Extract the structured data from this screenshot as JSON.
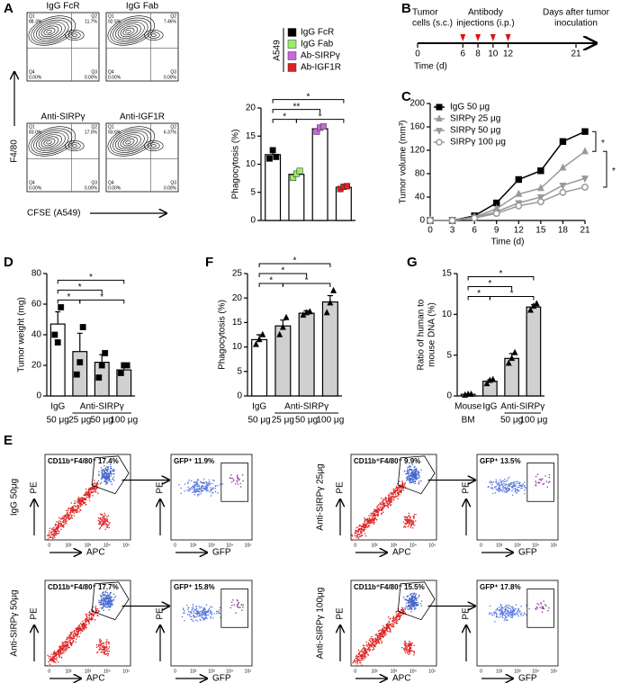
{
  "panel_labels": [
    "A",
    "B",
    "C",
    "D",
    "E",
    "F",
    "G"
  ],
  "flow_a": {
    "y_label": "F4/80",
    "x_label": "CFSE (A549)",
    "quadrant_names": [
      "Q1",
      "Q2",
      "Q3",
      "Q4"
    ],
    "plots": [
      {
        "title": "IgG FcR",
        "q1": "88.3%",
        "q2": "11.7%",
        "q3": "0.00%",
        "q4": "0.00%"
      },
      {
        "title": "IgG Fab",
        "q1": "92.5%",
        "q2": "7.46%",
        "q3": "0.00%",
        "q4": "0.00%"
      },
      {
        "title": "Anti-SIRPγ",
        "q1": "83.0%",
        "q2": "17.0%",
        "q3": "0.00%",
        "q4": "0.00%"
      },
      {
        "title": "Anti-IGF1R",
        "q1": "93.6%",
        "q2": "6.37%",
        "q3": "0.00%",
        "q4": "0.00%"
      }
    ]
  },
  "timeline": {
    "tumor_label": [
      "Tumor",
      "cells (s.c.)"
    ],
    "injection_label": [
      "Antibody",
      "injections (i.p.)"
    ],
    "days_label": [
      "Days after tumor",
      "inoculation"
    ],
    "axis_label": "Time (d)",
    "lim": [
      0,
      21
    ],
    "ticks": [
      0,
      6,
      8,
      10,
      12,
      21
    ],
    "injection_days": [
      6,
      8,
      10,
      12
    ],
    "injection_color": "#dd1111"
  },
  "chart_data": [
    {
      "type": "bar",
      "y_label": "Phagocytosis (%)",
      "categories": [
        "IgG FcR",
        "IgG Fab",
        "Ab-SIRPγ",
        "Ab-IGF1R"
      ],
      "legend": true,
      "legend_title": "A549",
      "colors": [
        "#000000",
        "#99ee66",
        "#cc66dd",
        "#dd2222"
      ],
      "bar_color": "#ffffff",
      "values": [
        11.7,
        8.2,
        16.3,
        5.9
      ],
      "errors": [
        0.6,
        0.5,
        0.3,
        0.2
      ],
      "points": [
        [
          11,
          12.5,
          11.3
        ],
        [
          7.6,
          8.3,
          8.8
        ],
        [
          15.8,
          16.5,
          16.7
        ],
        [
          5.6,
          6.0,
          6.1
        ]
      ],
      "point_shape": "square",
      "ylim": [
        0,
        20
      ],
      "yticks": [
        0,
        5,
        10,
        15,
        20
      ],
      "significance": [
        {
          "from": 0,
          "to": 1,
          "label": "*"
        },
        {
          "from": 1,
          "to": 3,
          "label": "*"
        },
        {
          "from": 0,
          "to": 2,
          "label": "**"
        },
        {
          "from": 0,
          "to": 3,
          "label": "*"
        }
      ]
    },
    {
      "type": "line",
      "y_label": "Tumor volume (mm³)",
      "x_label": "Time (d)",
      "x": [
        0,
        3,
        6,
        9,
        12,
        15,
        18,
        21
      ],
      "xlim": [
        0,
        21
      ],
      "xticks": [
        0,
        3,
        6,
        9,
        12,
        15,
        18,
        21
      ],
      "ylim": [
        0,
        200
      ],
      "yticks": [
        0,
        40,
        80,
        120,
        160,
        200
      ],
      "series": [
        {
          "name": "IgG 50 μg",
          "color": "#000000",
          "marker": "square",
          "values": [
            0,
            0,
            8,
            30,
            70,
            85,
            135,
            152
          ]
        },
        {
          "name": "SIRPγ 25 μg",
          "color": "#999999",
          "marker": "triangle-up",
          "values": [
            0,
            0,
            6,
            20,
            45,
            55,
            90,
            118
          ]
        },
        {
          "name": "SIRPγ 50 μg",
          "color": "#999999",
          "marker": "triangle-down",
          "values": [
            0,
            0,
            5,
            15,
            30,
            40,
            60,
            72
          ]
        },
        {
          "name": "SIRPγ 100 μg",
          "color": "#999999",
          "marker": "circle-open",
          "values": [
            0,
            0,
            4,
            12,
            25,
            32,
            48,
            57
          ]
        }
      ],
      "significance": [
        {
          "from": 0,
          "to": 1,
          "label": "*"
        },
        {
          "from": 1,
          "to": 3,
          "label": "*"
        }
      ]
    },
    {
      "type": "bar",
      "y_label": "Tumor weight (mg)",
      "categories": [
        "50 μg",
        "25 μg",
        "50 μg",
        "100 μg"
      ],
      "groups": [
        {
          "label": "IgG",
          "from": 0,
          "to": 0
        },
        {
          "label": "Anti-SIRPγ",
          "from": 1,
          "to": 3
        }
      ],
      "bar_colors": [
        "#ffffff",
        "#d0d0d0",
        "#d0d0d0",
        "#d0d0d0"
      ],
      "values": [
        47,
        29,
        22,
        17
      ],
      "errors": [
        8,
        12,
        5,
        2
      ],
      "points": [
        [
          40,
          35,
          58
        ],
        [
          14,
          22,
          45
        ],
        [
          12,
          20,
          28
        ],
        [
          15,
          20,
          20
        ]
      ],
      "point_shape": "square",
      "ylim": [
        0,
        80
      ],
      "yticks": [
        0,
        20,
        40,
        60,
        80
      ],
      "significance": [
        {
          "from": 0,
          "to": 1,
          "label": "*"
        },
        {
          "from": 1,
          "to": 3,
          "label": "*"
        },
        {
          "from": 0,
          "to": 2,
          "label": "*"
        },
        {
          "from": 0,
          "to": 3,
          "label": "*"
        }
      ]
    },
    {
      "type": "bar",
      "y_label": "Phagocytosis (%)",
      "categories": [
        "50 μg",
        "25 μg",
        "50 μg",
        "100 μg"
      ],
      "groups": [
        {
          "label": "IgG",
          "from": 0,
          "to": 0
        },
        {
          "label": "Anti-SIRPγ",
          "from": 1,
          "to": 3
        }
      ],
      "bar_colors": [
        "#ffffff",
        "#d0d0d0",
        "#d0d0d0",
        "#d0d0d0"
      ],
      "values": [
        11.5,
        14.3,
        16.9,
        19.2
      ],
      "errors": [
        1,
        1.2,
        0.5,
        1.3
      ],
      "points": [
        [
          10.5,
          11.5,
          12.5
        ],
        [
          12.5,
          14,
          16
        ],
        [
          16.5,
          17,
          17.2
        ],
        [
          17,
          19,
          21.5
        ]
      ],
      "point_shape": "triangle-up",
      "ylim": [
        0,
        25
      ],
      "yticks": [
        0,
        5,
        10,
        15,
        20,
        25
      ],
      "significance": [
        {
          "from": 0,
          "to": 1,
          "label": "*"
        },
        {
          "from": 1,
          "to": 3,
          "label": "*"
        },
        {
          "from": 0,
          "to": 2,
          "label": "*"
        },
        {
          "from": 0,
          "to": 3,
          "label": "*"
        }
      ]
    },
    {
      "type": "bar",
      "y_label": [
        "Ratio of human to",
        "mouse DNA (%)"
      ],
      "categories": [
        "BM",
        null,
        "50 μg",
        "100 μg"
      ],
      "groups": [
        {
          "label": "Mouse",
          "from": 0,
          "to": 0
        },
        {
          "label": "IgG",
          "from": 1,
          "to": 1
        },
        {
          "label": "Anti-SIRPγ",
          "from": 2,
          "to": 3
        }
      ],
      "bar_colors": [
        "#ffffff",
        "#d0d0d0",
        "#d0d0d0",
        "#d0d0d0"
      ],
      "values": [
        0.2,
        1.8,
        4.6,
        10.9
      ],
      "errors": [
        0.05,
        0.2,
        0.6,
        0.3
      ],
      "points": [
        [
          0.1,
          0.2,
          0.2
        ],
        [
          1.5,
          1.9,
          2
        ],
        [
          4,
          4.6,
          5.3
        ],
        [
          10.5,
          11,
          11.3
        ]
      ],
      "point_shape": "triangle-up",
      "ylim": [
        0,
        15
      ],
      "yticks": [
        0,
        5,
        10,
        15
      ],
      "significance": [
        {
          "from": 0,
          "to": 1,
          "label": "*"
        },
        {
          "from": 1,
          "to": 3,
          "label": "*"
        },
        {
          "from": 0,
          "to": 2,
          "label": "*"
        },
        {
          "from": 0,
          "to": 3,
          "label": "*"
        }
      ]
    }
  ],
  "flow_e": {
    "x_label": "APC",
    "y_label": "PE",
    "gfp_label": "GFP",
    "tick_labels": [
      "0",
      "10²",
      "10³",
      "10⁴",
      "10⁵"
    ],
    "samples": [
      {
        "label": "IgG 50μg",
        "gate1": "CD11b⁺F4/80⁺ 17.4%",
        "gate2": "GFP⁺ 11.9%"
      },
      {
        "label": "Anti-SIRPγ 25μg",
        "gate1": "CD11b⁺F4/80⁺ 9.9%",
        "gate2": "GFP⁺ 13.5%"
      },
      {
        "label": "Anti-SIRPγ 50μg",
        "gate1": "CD11b⁺F4/80⁺ 17.7%",
        "gate2": "GFP⁺ 15.8%"
      },
      {
        "label": "Anti-SIRPγ 100μg",
        "gate1": "CD11b⁺F4/80⁺ 15.5%",
        "gate2": "GFP⁺ 17.8%"
      }
    ]
  }
}
